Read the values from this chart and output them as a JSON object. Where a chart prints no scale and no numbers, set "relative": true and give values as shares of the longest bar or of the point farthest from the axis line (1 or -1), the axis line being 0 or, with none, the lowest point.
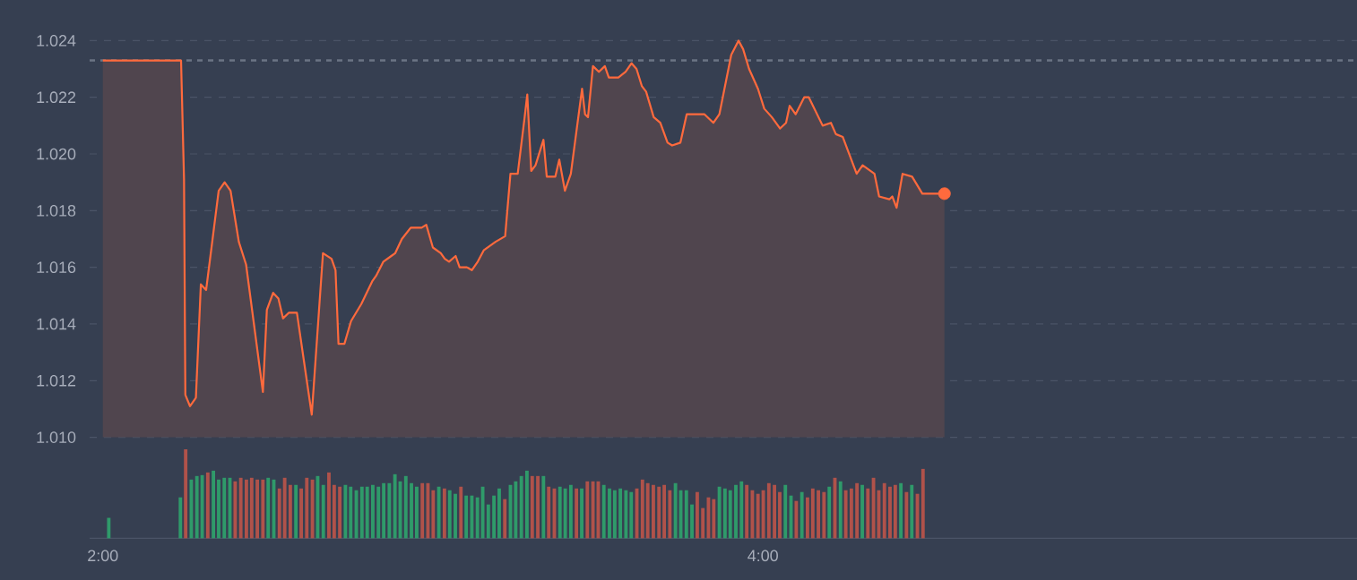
{
  "chart_data": [
    {
      "type": "area",
      "series": [
        {
          "type": "area",
          "color": "#ff6a3d",
          "x": [
            2.0,
            2.237,
            2.246,
            2.25,
            2.264,
            2.282,
            2.297,
            2.313,
            2.326,
            2.351,
            2.369,
            2.387,
            2.412,
            2.434,
            2.485,
            2.497,
            2.516,
            2.532,
            2.546,
            2.564,
            2.588,
            2.633,
            2.667,
            2.693,
            2.705,
            2.714,
            2.732,
            2.752,
            2.783,
            2.816,
            2.828,
            2.85,
            2.874,
            2.886,
            2.906,
            2.933,
            2.966,
            2.98,
            3.0,
            3.024,
            3.036,
            3.049,
            3.069,
            3.081,
            3.103,
            3.118,
            3.136,
            3.154,
            3.19,
            3.219,
            3.235,
            3.257,
            3.277,
            3.286,
            3.298,
            3.311,
            3.335,
            3.345,
            3.371,
            3.383,
            3.4,
            3.418,
            3.452,
            3.461,
            3.47,
            3.485,
            3.503,
            3.521,
            3.533,
            3.562,
            3.584,
            3.602,
            3.617,
            3.633,
            3.646,
            3.669,
            3.689,
            3.711,
            3.725,
            3.75,
            3.769,
            3.823,
            3.85,
            3.868,
            3.904,
            3.926,
            3.94,
            3.958,
            3.985,
            4.004,
            4.027,
            4.052,
            4.07,
            4.081,
            4.099,
            4.125,
            4.139,
            4.181,
            4.206,
            4.221,
            4.242,
            4.284,
            4.302,
            4.338,
            4.352,
            4.383,
            4.392,
            4.405,
            4.423,
            4.452,
            4.483,
            4.55
          ],
          "values": [
            1.0233,
            1.0233,
            1.0191,
            1.0115,
            1.0111,
            1.0114,
            1.0154,
            1.0152,
            1.0164,
            1.0187,
            1.019,
            1.0187,
            1.0169,
            1.0161,
            1.0116,
            1.0145,
            1.0151,
            1.0149,
            1.0142,
            1.0144,
            1.0144,
            1.0108,
            1.0165,
            1.0163,
            1.0159,
            1.0133,
            1.0133,
            1.0141,
            1.0147,
            1.0155,
            1.0157,
            1.0162,
            1.0164,
            1.0165,
            1.017,
            1.0174,
            1.0174,
            1.0175,
            1.0167,
            1.0165,
            1.0163,
            1.0162,
            1.0164,
            1.016,
            1.016,
            1.0159,
            1.0162,
            1.0166,
            1.0169,
            1.0171,
            1.0193,
            1.0193,
            1.0212,
            1.0221,
            1.0194,
            1.0196,
            1.0205,
            1.0192,
            1.0192,
            1.0198,
            1.0187,
            1.0193,
            1.0223,
            1.0214,
            1.0213,
            1.0231,
            1.0229,
            1.0231,
            1.0227,
            1.0227,
            1.0229,
            1.0232,
            1.023,
            1.0224,
            1.0222,
            1.0213,
            1.0211,
            1.0204,
            1.0203,
            1.0204,
            1.0214,
            1.0214,
            1.0211,
            1.0214,
            1.0235,
            1.024,
            1.0237,
            1.023,
            1.0223,
            1.0216,
            1.0213,
            1.0209,
            1.0211,
            1.0217,
            1.0214,
            1.022,
            1.022,
            1.021,
            1.0211,
            1.0207,
            1.0206,
            1.0193,
            1.0196,
            1.0193,
            1.0185,
            1.0184,
            1.0185,
            1.0181,
            1.0193,
            1.0192,
            1.0186,
            1.0186
          ]
        },
        {
          "type": "scatter",
          "color": "#ff6a3d",
          "x": [
            4.55
          ],
          "values": [
            1.0186
          ]
        }
      ],
      "xlim": [
        1.96,
        5.8
      ],
      "ylim": [
        1.01,
        1.024
      ],
      "yticks": [
        {
          "value": 1.01,
          "label": "1.010"
        },
        {
          "value": 1.012,
          "label": "1.012"
        },
        {
          "value": 1.014,
          "label": "1.014"
        },
        {
          "value": 1.016,
          "label": "1.016"
        },
        {
          "value": 1.018,
          "label": "1.018"
        },
        {
          "value": 1.02,
          "label": "1.020"
        },
        {
          "value": 1.022,
          "label": "1.022"
        },
        {
          "value": 1.024,
          "label": "1.024"
        }
      ],
      "ref_lines": [
        {
          "axis": "y",
          "value": 1.0233,
          "color": "#6b7484",
          "line_style": "dashed"
        }
      ],
      "grid": "y",
      "tick_labels": "y"
    },
    {
      "type": "bar",
      "relative": true,
      "x": [
        2.018,
        2.235,
        2.251,
        2.268,
        2.285,
        2.301,
        2.318,
        2.335,
        2.351,
        2.368,
        2.385,
        2.401,
        2.418,
        2.435,
        2.451,
        2.468,
        2.485,
        2.501,
        2.518,
        2.535,
        2.551,
        2.568,
        2.585,
        2.601,
        2.618,
        2.635,
        2.651,
        2.668,
        2.685,
        2.701,
        2.718,
        2.735,
        2.751,
        2.768,
        2.785,
        2.801,
        2.818,
        2.835,
        2.851,
        2.868,
        2.885,
        2.901,
        2.918,
        2.935,
        2.951,
        2.968,
        2.985,
        3.001,
        3.018,
        3.035,
        3.051,
        3.068,
        3.085,
        3.101,
        3.118,
        3.135,
        3.151,
        3.168,
        3.185,
        3.201,
        3.218,
        3.235,
        3.251,
        3.268,
        3.285,
        3.301,
        3.318,
        3.335,
        3.351,
        3.368,
        3.385,
        3.401,
        3.418,
        3.435,
        3.451,
        3.468,
        3.485,
        3.501,
        3.518,
        3.535,
        3.551,
        3.568,
        3.585,
        3.601,
        3.618,
        3.635,
        3.651,
        3.668,
        3.685,
        3.701,
        3.718,
        3.735,
        3.751,
        3.768,
        3.785,
        3.801,
        3.818,
        3.835,
        3.851,
        3.868,
        3.885,
        3.901,
        3.918,
        3.935,
        3.951,
        3.968,
        3.985,
        4.001,
        4.018,
        4.035,
        4.051,
        4.068,
        4.085,
        4.101,
        4.118,
        4.135,
        4.151,
        4.168,
        4.185,
        4.201,
        4.218,
        4.235,
        4.251,
        4.268,
        4.285,
        4.301,
        4.318,
        4.335,
        4.351,
        4.368,
        4.385,
        4.401,
        4.418,
        4.435,
        4.451,
        4.468,
        4.485
      ],
      "values": [
        0.23,
        0.46,
        1,
        0.66,
        0.7,
        0.71,
        0.74,
        0.76,
        0.66,
        0.68,
        0.68,
        0.64,
        0.68,
        0.66,
        0.68,
        0.66,
        0.66,
        0.68,
        0.66,
        0.56,
        0.68,
        0.6,
        0.6,
        0.56,
        0.68,
        0.66,
        0.7,
        0.6,
        0.74,
        0.6,
        0.58,
        0.6,
        0.58,
        0.54,
        0.58,
        0.58,
        0.6,
        0.58,
        0.62,
        0.62,
        0.72,
        0.64,
        0.7,
        0.62,
        0.58,
        0.62,
        0.62,
        0.54,
        0.58,
        0.56,
        0.54,
        0.5,
        0.58,
        0.48,
        0.48,
        0.46,
        0.58,
        0.38,
        0.48,
        0.56,
        0.44,
        0.6,
        0.64,
        0.7,
        0.76,
        0.7,
        0.7,
        0.7,
        0.58,
        0.56,
        0.58,
        0.56,
        0.6,
        0.56,
        0.56,
        0.64,
        0.64,
        0.64,
        0.6,
        0.56,
        0.54,
        0.56,
        0.54,
        0.52,
        0.56,
        0.66,
        0.62,
        0.6,
        0.58,
        0.6,
        0.54,
        0.62,
        0.54,
        0.54,
        0.38,
        0.52,
        0.34,
        0.46,
        0.44,
        0.58,
        0.56,
        0.54,
        0.6,
        0.64,
        0.6,
        0.54,
        0.5,
        0.54,
        0.62,
        0.6,
        0.52,
        0.6,
        0.48,
        0.42,
        0.52,
        0.46,
        0.56,
        0.54,
        0.52,
        0.58,
        0.68,
        0.64,
        0.54,
        0.56,
        0.62,
        0.6,
        0.56,
        0.68,
        0.54,
        0.62,
        0.58,
        0.6,
        0.62,
        0.52,
        0.6,
        0.5,
        0.78
      ],
      "colors": [
        "#2f9a6a",
        "#2f9a6a",
        "#b0524a",
        "#2f9a6a",
        "#2f9a6a",
        "#2f9a6a",
        "#b0524a",
        "#2f9a6a",
        "#2f9a6a",
        "#2f9a6a",
        "#2f9a6a",
        "#b0524a",
        "#b0524a",
        "#b0524a",
        "#b0524a",
        "#b0524a",
        "#b0524a",
        "#2f9a6a",
        "#2f9a6a",
        "#b0524a",
        "#b0524a",
        "#b0524a",
        "#2f9a6a",
        "#b0524a",
        "#b0524a",
        "#b0524a",
        "#2f9a6a",
        "#2f9a6a",
        "#b0524a",
        "#b0524a",
        "#b0524a",
        "#2f9a6a",
        "#2f9a6a",
        "#2f9a6a",
        "#2f9a6a",
        "#2f9a6a",
        "#2f9a6a",
        "#2f9a6a",
        "#2f9a6a",
        "#2f9a6a",
        "#2f9a6a",
        "#2f9a6a",
        "#2f9a6a",
        "#2f9a6a",
        "#2f9a6a",
        "#b0524a",
        "#b0524a",
        "#b0524a",
        "#2f9a6a",
        "#b0524a",
        "#2f9a6a",
        "#2f9a6a",
        "#b0524a",
        "#2f9a6a",
        "#2f9a6a",
        "#2f9a6a",
        "#2f9a6a",
        "#2f9a6a",
        "#2f9a6a",
        "#2f9a6a",
        "#b0524a",
        "#2f9a6a",
        "#2f9a6a",
        "#2f9a6a",
        "#2f9a6a",
        "#b0524a",
        "#b0524a",
        "#2f9a6a",
        "#b0524a",
        "#b0524a",
        "#2f9a6a",
        "#2f9a6a",
        "#2f9a6a",
        "#b0524a",
        "#2f9a6a",
        "#b0524a",
        "#b0524a",
        "#b0524a",
        "#2f9a6a",
        "#2f9a6a",
        "#2f9a6a",
        "#2f9a6a",
        "#2f9a6a",
        "#2f9a6a",
        "#b0524a",
        "#b0524a",
        "#b0524a",
        "#b0524a",
        "#b0524a",
        "#b0524a",
        "#b0524a",
        "#2f9a6a",
        "#2f9a6a",
        "#2f9a6a",
        "#2f9a6a",
        "#b0524a",
        "#b0524a",
        "#b0524a",
        "#b0524a",
        "#2f9a6a",
        "#2f9a6a",
        "#2f9a6a",
        "#2f9a6a",
        "#2f9a6a",
        "#b0524a",
        "#b0524a",
        "#b0524a",
        "#b0524a",
        "#b0524a",
        "#b0524a",
        "#b0524a",
        "#2f9a6a",
        "#2f9a6a",
        "#b0524a",
        "#2f9a6a",
        "#b0524a",
        "#b0524a",
        "#b0524a",
        "#b0524a",
        "#2f9a6a",
        "#b0524a",
        "#2f9a6a",
        "#b0524a",
        "#b0524a",
        "#b0524a",
        "#2f9a6a",
        "#b0524a",
        "#b0524a",
        "#b0524a",
        "#b0524a",
        "#b0524a",
        "#b0524a",
        "#2f9a6a",
        "#b0524a",
        "#2f9a6a",
        "#b0524a",
        "#b0524a"
      ],
      "xlim": [
        1.96,
        5.8
      ],
      "xticks": [
        {
          "value": 2,
          "label": "2:00"
        },
        {
          "value": 4,
          "label": "4:00"
        }
      ],
      "tick_labels": "x"
    }
  ]
}
